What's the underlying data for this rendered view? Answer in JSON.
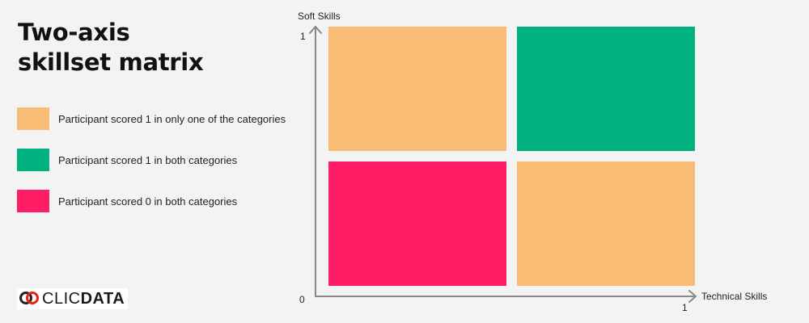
{
  "title": {
    "line1": "Two-axis",
    "line2": "skillset matrix"
  },
  "legend": [
    {
      "label": "Participant scored 1 in only one of the categories",
      "color": "#f8bc74"
    },
    {
      "label": "Participant scored 1 in both categories",
      "color": "#00b27f"
    },
    {
      "label": "Participant scored 0 in both categories",
      "color": "#ff1d66"
    }
  ],
  "logo": {
    "part1": "CLIC",
    "part2": "DATA",
    "icon": "clicdata-rings-icon"
  },
  "chart_data": {
    "type": "heatmap",
    "xlabel": "Technical Skills",
    "ylabel": "Soft Skills",
    "x_ticks": [
      "0",
      "1"
    ],
    "y_ticks": [
      "0",
      "1"
    ],
    "xlim": [
      0,
      1
    ],
    "ylim": [
      0,
      1
    ],
    "cells": [
      {
        "x": 0,
        "y": 1,
        "category": "one",
        "color": "#f8bc74"
      },
      {
        "x": 1,
        "y": 1,
        "category": "both",
        "color": "#00b27f"
      },
      {
        "x": 0,
        "y": 0,
        "category": "none",
        "color": "#ff1d66"
      },
      {
        "x": 1,
        "y": 0,
        "category": "one",
        "color": "#f8bc74"
      }
    ],
    "axis_color": "#888888"
  }
}
